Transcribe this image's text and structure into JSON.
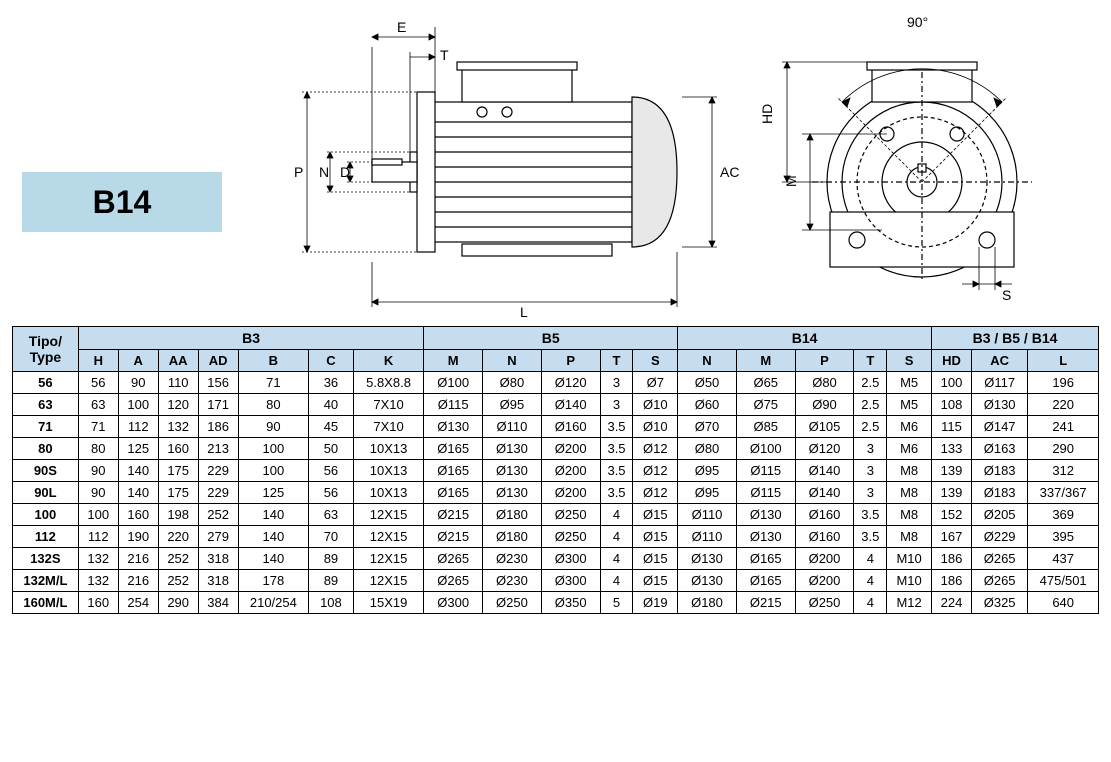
{
  "badge": {
    "label": "B14",
    "bg": "#b7d9e8",
    "fg": "#000000",
    "fontsize": 32
  },
  "diagram": {
    "angle_label": "90°",
    "dims_side": [
      "E",
      "T",
      "P",
      "N",
      "D",
      "AC",
      "L",
      "HD",
      "M",
      "S"
    ],
    "stroke": "#000000",
    "fill_body": "#ffffff",
    "fill_accent": "#e8e8e8"
  },
  "table": {
    "header_bg": "#c5ddee",
    "border_color": "#000000",
    "font_family": "Arial",
    "header_fontsize": 14,
    "cell_fontsize": 13,
    "groups": [
      {
        "label": "Tipo/\nType",
        "span": 1,
        "rowspan": 2
      },
      {
        "label": "B3",
        "span": 7
      },
      {
        "label": "B5",
        "span": 5
      },
      {
        "label": "B14",
        "span": 5
      },
      {
        "label": "B3 / B5 / B14",
        "span": 3
      }
    ],
    "columns": [
      "H",
      "A",
      "AA",
      "AD",
      "B",
      "C",
      "K",
      "M",
      "N",
      "P",
      "T",
      "S",
      "N",
      "M",
      "P",
      "T",
      "S",
      "HD",
      "AC",
      "L"
    ],
    "rows": [
      {
        "type": "56",
        "cells": [
          "56",
          "90",
          "110",
          "156",
          "71",
          "36",
          "5.8X8.8",
          "Ø100",
          "Ø80",
          "Ø120",
          "3",
          "Ø7",
          "Ø50",
          "Ø65",
          "Ø80",
          "2.5",
          "M5",
          "100",
          "Ø117",
          "196"
        ]
      },
      {
        "type": "63",
        "cells": [
          "63",
          "100",
          "120",
          "171",
          "80",
          "40",
          "7X10",
          "Ø115",
          "Ø95",
          "Ø140",
          "3",
          "Ø10",
          "Ø60",
          "Ø75",
          "Ø90",
          "2.5",
          "M5",
          "108",
          "Ø130",
          "220"
        ]
      },
      {
        "type": "71",
        "cells": [
          "71",
          "112",
          "132",
          "186",
          "90",
          "45",
          "7X10",
          "Ø130",
          "Ø110",
          "Ø160",
          "3.5",
          "Ø10",
          "Ø70",
          "Ø85",
          "Ø105",
          "2.5",
          "M6",
          "115",
          "Ø147",
          "241"
        ]
      },
      {
        "type": "80",
        "cells": [
          "80",
          "125",
          "160",
          "213",
          "100",
          "50",
          "10X13",
          "Ø165",
          "Ø130",
          "Ø200",
          "3.5",
          "Ø12",
          "Ø80",
          "Ø100",
          "Ø120",
          "3",
          "M6",
          "133",
          "Ø163",
          "290"
        ]
      },
      {
        "type": "90S",
        "cells": [
          "90",
          "140",
          "175",
          "229",
          "100",
          "56",
          "10X13",
          "Ø165",
          "Ø130",
          "Ø200",
          "3.5",
          "Ø12",
          "Ø95",
          "Ø115",
          "Ø140",
          "3",
          "M8",
          "139",
          "Ø183",
          "312"
        ]
      },
      {
        "type": "90L",
        "cells": [
          "90",
          "140",
          "175",
          "229",
          "125",
          "56",
          "10X13",
          "Ø165",
          "Ø130",
          "Ø200",
          "3.5",
          "Ø12",
          "Ø95",
          "Ø115",
          "Ø140",
          "3",
          "M8",
          "139",
          "Ø183",
          "337/367"
        ]
      },
      {
        "type": "100",
        "cells": [
          "100",
          "160",
          "198",
          "252",
          "140",
          "63",
          "12X15",
          "Ø215",
          "Ø180",
          "Ø250",
          "4",
          "Ø15",
          "Ø110",
          "Ø130",
          "Ø160",
          "3.5",
          "M8",
          "152",
          "Ø205",
          "369"
        ]
      },
      {
        "type": "112",
        "cells": [
          "112",
          "190",
          "220",
          "279",
          "140",
          "70",
          "12X15",
          "Ø215",
          "Ø180",
          "Ø250",
          "4",
          "Ø15",
          "Ø110",
          "Ø130",
          "Ø160",
          "3.5",
          "M8",
          "167",
          "Ø229",
          "395"
        ]
      },
      {
        "type": "132S",
        "cells": [
          "132",
          "216",
          "252",
          "318",
          "140",
          "89",
          "12X15",
          "Ø265",
          "Ø230",
          "Ø300",
          "4",
          "Ø15",
          "Ø130",
          "Ø165",
          "Ø200",
          "4",
          "M10",
          "186",
          "Ø265",
          "437"
        ]
      },
      {
        "type": "132M/L",
        "cells": [
          "132",
          "216",
          "252",
          "318",
          "178",
          "89",
          "12X15",
          "Ø265",
          "Ø230",
          "Ø300",
          "4",
          "Ø15",
          "Ø130",
          "Ø165",
          "Ø200",
          "4",
          "M10",
          "186",
          "Ø265",
          "475/501"
        ]
      },
      {
        "type": "160M/L",
        "cells": [
          "160",
          "254",
          "290",
          "384",
          "210/254",
          "108",
          "15X19",
          "Ø300",
          "Ø250",
          "Ø350",
          "5",
          "Ø19",
          "Ø180",
          "Ø215",
          "Ø250",
          "4",
          "M12",
          "224",
          "Ø325",
          "640"
        ]
      }
    ]
  }
}
